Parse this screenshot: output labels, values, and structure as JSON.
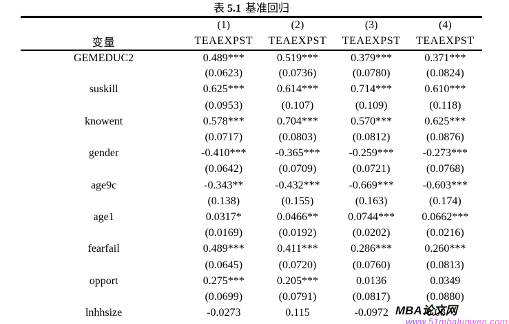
{
  "title": {
    "label": "表",
    "number": "5.1",
    "text": "基准回归"
  },
  "table": {
    "header": {
      "variable_label": "变量",
      "columns": [
        {
          "number": "(1)",
          "dep_var": "TEAEXPST"
        },
        {
          "number": "(2)",
          "dep_var": "TEAEXPST"
        },
        {
          "number": "(3)",
          "dep_var": "TEAEXPST"
        },
        {
          "number": "(4)",
          "dep_var": "TEAEXPST"
        }
      ]
    },
    "rows": [
      {
        "variable": "GEMEDUC2",
        "coefs": [
          "0.489***",
          "0.519***",
          "0.379***",
          "0.371***"
        ],
        "ses": [
          "(0.0623)",
          "(0.0736)",
          "(0.0780)",
          "(0.0824)"
        ],
        "truncated": false
      },
      {
        "variable": "suskill",
        "coefs": [
          "0.625***",
          "0.614***",
          "0.714***",
          "0.610***"
        ],
        "ses": [
          "(0.0953)",
          "(0.107)",
          "(0.109)",
          "(0.118)"
        ],
        "truncated": false
      },
      {
        "variable": "knowent",
        "coefs": [
          "0.578***",
          "0.704***",
          "0.570***",
          "0.625***"
        ],
        "ses": [
          "(0.0717)",
          "(0.0803)",
          "(0.0812)",
          "(0.0876)"
        ],
        "truncated": false
      },
      {
        "variable": "gender",
        "coefs": [
          "-0.410***",
          "-0.365***",
          "-0.259***",
          "-0.273***"
        ],
        "ses": [
          "(0.0642)",
          "(0.0709)",
          "(0.0721)",
          "(0.0768)"
        ],
        "truncated": false
      },
      {
        "variable": "age9c",
        "coefs": [
          "-0.343**",
          "-0.432***",
          "-0.669***",
          "-0.603***"
        ],
        "ses": [
          "(0.138)",
          "(0.155)",
          "(0.163)",
          "(0.174)"
        ],
        "truncated": false
      },
      {
        "variable": "age1",
        "coefs": [
          "0.0317*",
          "0.0466**",
          "0.0744***",
          "0.0662***"
        ],
        "ses": [
          "(0.0169)",
          "(0.0192)",
          "(0.0202)",
          "(0.0216)"
        ],
        "truncated": false
      },
      {
        "variable": "fearfail",
        "coefs": [
          "0.489***",
          "0.411***",
          "0.286***",
          "0.260***"
        ],
        "ses": [
          "(0.0645)",
          "(0.0720)",
          "(0.0760)",
          "(0.0813)"
        ],
        "truncated": false
      },
      {
        "variable": "opport",
        "coefs": [
          "0.275***",
          "0.205***",
          "0.0136",
          "0.0349"
        ],
        "ses": [
          "(0.0699)",
          "(0.0791)",
          "(0.0817)",
          "(0.0880)"
        ],
        "truncated": false
      },
      {
        "variable": "lnhhsize",
        "coefs": [
          "-0.0273",
          "0.115",
          "-0.0972",
          "-0.08"
        ],
        "ses": [],
        "truncated": true
      }
    ]
  },
  "watermark": {
    "name": "MBA论文网",
    "url": "www.51mbalunwen.com",
    "url_color_start": "#8d57e8",
    "url_color_end": "#ff5fd2"
  }
}
